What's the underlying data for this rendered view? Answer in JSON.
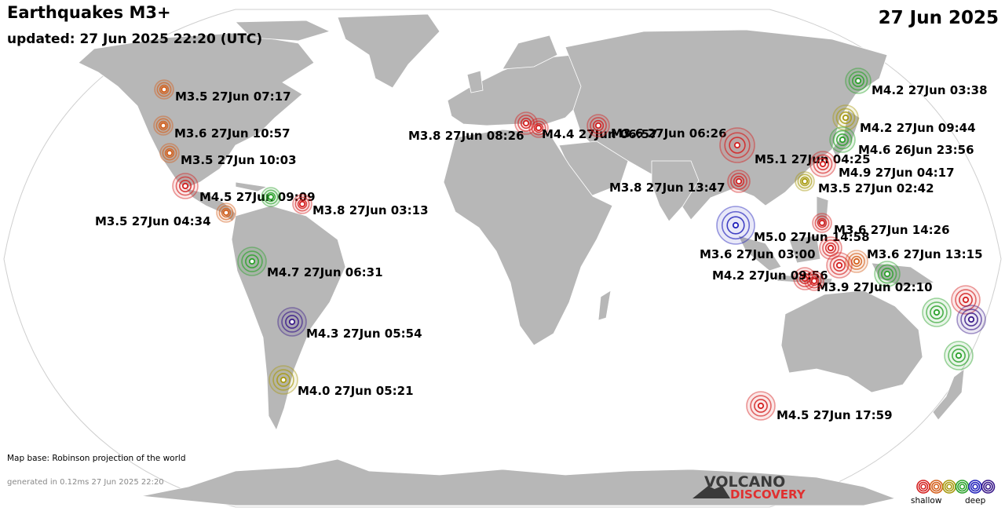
{
  "header": {
    "title": "Earthquakes M3+",
    "updated": "updated: 27 Jun 2025 22:20 (UTC)",
    "date": "27 Jun 2025"
  },
  "footer": {
    "map_credit": "Map base: Robinson projection of the world",
    "generated": "generated in 0.12ms 27 Jun 2025 22:20"
  },
  "brand": {
    "line1": "VOLCANO",
    "line2": "DISCOVERY"
  },
  "legend": {
    "low_label": "shallow",
    "high_label": "deep",
    "depth_colors": [
      "#d42020",
      "#d4601c",
      "#a89a10",
      "#2aa12a",
      "#2222bb",
      "#3a1a8a"
    ]
  },
  "map": {
    "land_color": "#b7b7b7",
    "border_color": "#ffffff",
    "ocean_color": "#ffffff"
  },
  "quakes": [
    {
      "label": "M3.5 27Jun 07:17",
      "color": "#d4601c"
    },
    {
      "label": "M3.6 27Jun 10:57",
      "color": "#d4601c"
    },
    {
      "label": "M3.5 27Jun 10:03",
      "color": "#d4601c"
    },
    {
      "label": "M4.5 27Jun 09:09",
      "color": "#d42020"
    },
    {
      "label": "",
      "color": "#2aa12a"
    },
    {
      "label": "M3.8 27Jun 03:13",
      "color": "#d42020"
    },
    {
      "label": "M3.5 27Jun 04:34",
      "color": "#d4601c"
    },
    {
      "label": "M4.7 27Jun 06:31",
      "color": "#2aa12a"
    },
    {
      "label": "M4.3 27Jun 05:54",
      "color": "#3a1a8a"
    },
    {
      "label": "M4.0 27Jun 05:21",
      "color": "#a89a10"
    },
    {
      "label": "M3.8 27Jun 08:26",
      "color": "#d42020"
    },
    {
      "label": "M4.4 27Jun 06:57",
      "color": "#d42020"
    },
    {
      "label": "M3.6 27Jun 06:26",
      "color": "#d42020"
    },
    {
      "label": "M5.1 27Jun 04:25",
      "color": "#d42020"
    },
    {
      "label": "M3.8 27Jun 13:47",
      "color": "#d42020"
    },
    {
      "label": "M4.9 27Jun 04:17",
      "color": "#d42020"
    },
    {
      "label": "M3.5 27Jun 02:42",
      "color": "#a89a10"
    },
    {
      "label": "M4.2 27Jun 03:38",
      "color": "#2aa12a"
    },
    {
      "label": "M4.2 27Jun 09:44",
      "color": "#a89a10"
    },
    {
      "label": "M4.6 26Jun 23:56",
      "color": "#2aa12a"
    },
    {
      "label": "M5.0 27Jun 14:58",
      "color": "#2222bb"
    },
    {
      "label": "M3.6 27Jun 14:26",
      "color": "#d42020"
    },
    {
      "label": "M3.6 27Jun 03:00",
      "color": "#d42020"
    },
    {
      "label": "M3.6 27Jun 13:15",
      "color": "#d4601c"
    },
    {
      "label": "M4.2 27Jun 09:56",
      "color": "#d42020"
    },
    {
      "label": "M3.9 27Jun 02:10",
      "color": "#2aa12a"
    },
    {
      "label": "",
      "color": "#d42020"
    },
    {
      "label": "",
      "color": "#d42020"
    },
    {
      "label": "",
      "color": "#d42020"
    },
    {
      "label": "",
      "color": "#2aa12a"
    },
    {
      "label": "",
      "color": "#d42020"
    },
    {
      "label": "",
      "color": "#3a1a8a"
    },
    {
      "label": "",
      "color": "#2aa12a"
    },
    {
      "label": "M4.5 27Jun 17:59",
      "color": "#d42020"
    }
  ]
}
